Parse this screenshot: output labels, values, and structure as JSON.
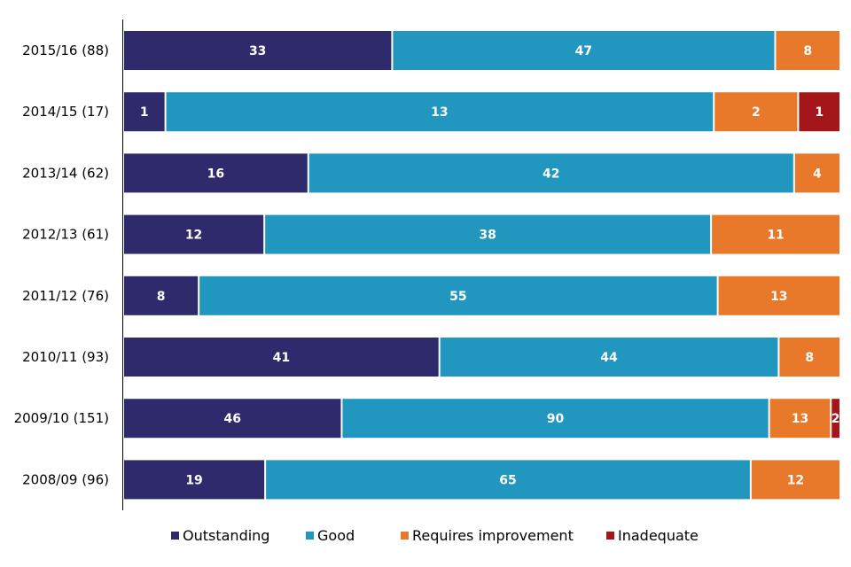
{
  "chart_data": {
    "type": "bar",
    "orientation": "horizontal",
    "stacked": true,
    "categories": [
      "2015/16 (88)",
      "2014/15 (17)",
      "2013/14 (62)",
      "2012/13 (61)",
      "2011/12 (76)",
      "2010/11 (93)",
      "2009/10 (151)",
      "2008/09 (96)"
    ],
    "series": [
      {
        "name": "Outstanding",
        "color": "#2e2a6b",
        "values": [
          33,
          1,
          16,
          12,
          8,
          41,
          46,
          19
        ]
      },
      {
        "name": "Good",
        "color": "#2196be",
        "values": [
          47,
          13,
          42,
          38,
          55,
          44,
          90,
          65
        ]
      },
      {
        "name": "Requires improvement",
        "color": "#e8792a",
        "values": [
          8,
          2,
          4,
          11,
          13,
          8,
          13,
          12
        ]
      },
      {
        "name": "Inadequate",
        "color": "#a3161a",
        "values": [
          0,
          1,
          0,
          0,
          0,
          0,
          2,
          0
        ]
      }
    ],
    "normalized": true,
    "title": "",
    "xlabel": "",
    "ylabel": "",
    "grid": false,
    "legend_position": "bottom"
  }
}
